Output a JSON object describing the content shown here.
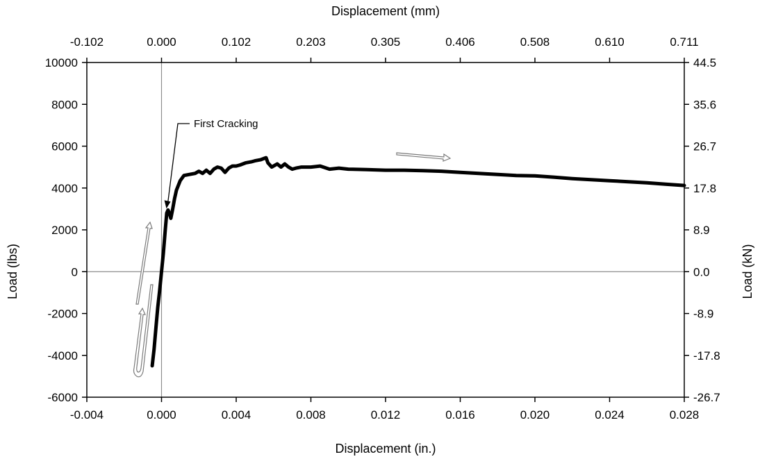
{
  "chart_data": {
    "type": "line",
    "title": "",
    "xlabel": "Displacement (in.)",
    "ylabel": "Load (lbs)",
    "x2label": "Displacement (mm)",
    "y2label": "Load (kN)",
    "xlim": [
      -0.004,
      0.028
    ],
    "ylim": [
      -6000,
      10000
    ],
    "grid": false,
    "legend": "none",
    "x_ticks": [
      "-0.004",
      "0.000",
      "0.004",
      "0.008",
      "0.012",
      "0.016",
      "0.020",
      "0.024",
      "0.028"
    ],
    "y_ticks": [
      "-6000",
      "-4000",
      "-2000",
      "0",
      "2000",
      "4000",
      "6000",
      "8000",
      "10000"
    ],
    "x2_ticks": [
      "-0.102",
      "0.000",
      "0.102",
      "0.203",
      "0.305",
      "0.406",
      "0.508",
      "0.610",
      "0.711"
    ],
    "y2_ticks": [
      "-26.7",
      "-17.8",
      "-8.9",
      "0.0",
      "8.9",
      "17.8",
      "26.7",
      "35.6",
      "44.5"
    ],
    "series": [
      {
        "color": "#000000",
        "x": [
          -0.0005,
          -0.0004,
          -0.0003,
          -0.0002,
          -0.0001,
          0.0,
          0.0001,
          0.0002,
          0.00028,
          0.00035,
          0.00045,
          0.0005,
          0.0006,
          0.0007,
          0.0008,
          0.001,
          0.0012,
          0.0015,
          0.0018,
          0.002,
          0.0022,
          0.0024,
          0.0026,
          0.0028,
          0.003,
          0.0032,
          0.0034,
          0.0036,
          0.0038,
          0.004,
          0.0042,
          0.0045,
          0.0048,
          0.005,
          0.0053,
          0.0056,
          0.0057,
          0.0059,
          0.006,
          0.0062,
          0.0064,
          0.0066,
          0.0068,
          0.007,
          0.0072,
          0.0075,
          0.008,
          0.0085,
          0.009,
          0.0095,
          0.01,
          0.011,
          0.012,
          0.013,
          0.014,
          0.015,
          0.016,
          0.017,
          0.018,
          0.019,
          0.02,
          0.021,
          0.022,
          0.023,
          0.024,
          0.025,
          0.026,
          0.027,
          0.028
        ],
        "y": [
          -4500,
          -3700,
          -2700,
          -1700,
          -900,
          0,
          900,
          2000,
          2800,
          2950,
          2700,
          2550,
          3000,
          3500,
          3900,
          4350,
          4600,
          4650,
          4700,
          4800,
          4700,
          4850,
          4700,
          4900,
          5000,
          4950,
          4750,
          4950,
          5050,
          5050,
          5100,
          5200,
          5250,
          5300,
          5350,
          5450,
          5200,
          5000,
          5050,
          5150,
          5000,
          5150,
          5000,
          4900,
          4950,
          5000,
          5000,
          5050,
          4900,
          4950,
          4900,
          4880,
          4850,
          4850,
          4830,
          4800,
          4750,
          4700,
          4650,
          4600,
          4580,
          4520,
          4450,
          4400,
          4350,
          4300,
          4250,
          4180,
          4120
        ]
      }
    ],
    "annotations": [
      {
        "text": "First Cracking",
        "x": 0.0003,
        "y": 2950
      }
    ]
  }
}
